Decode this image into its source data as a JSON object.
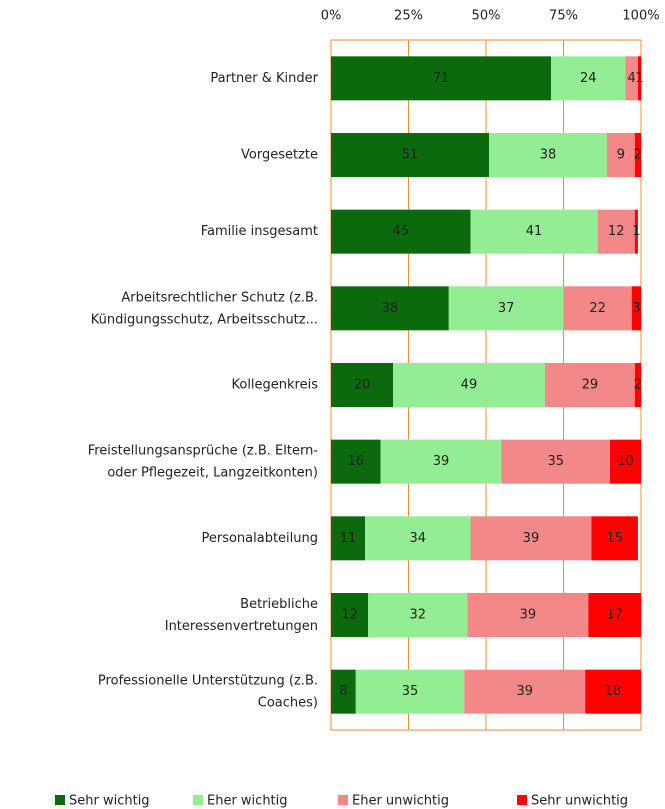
{
  "chart_data": {
    "type": "stacked-barh",
    "categories": [
      "Partner & Kinder",
      "Vorgesetzte",
      "Familie insgesamt",
      "Arbeitsrechtlicher Schutz (z.B.\nKündigungsschutz, Arbeitsschutz...",
      "Kollegenkreis",
      "Freistellungsansprüche (z.B. Eltern-\noder Pflegezeit, Langzeitkonten)",
      "Personalabteilung",
      "Betriebliche\nInteressenvertretungen",
      "Professionelle Unterstützung (z.B.\nCoaches)"
    ],
    "series": [
      {
        "name": "Sehr wichtig",
        "color": "#0b6a0b",
        "values": [
          71,
          51,
          45,
          38,
          20,
          16,
          11,
          12,
          8
        ]
      },
      {
        "name": "Eher wichtig",
        "color": "#93ee93",
        "values": [
          24,
          38,
          41,
          37,
          49,
          39,
          34,
          32,
          35
        ]
      },
      {
        "name": "Eher unwichtig",
        "color": "#f38888",
        "values": [
          4,
          9,
          12,
          22,
          29,
          35,
          39,
          39,
          39
        ]
      },
      {
        "name": "Sehr unwichtig",
        "color": "#ff0000",
        "values": [
          1,
          2,
          1,
          3,
          2,
          10,
          15,
          17,
          18
        ]
      }
    ],
    "xlim": [
      0,
      100
    ],
    "xticks": [
      {
        "value": 0,
        "label": "0%"
      },
      {
        "value": 25,
        "label": "25%"
      },
      {
        "value": 50,
        "label": "50%"
      },
      {
        "value": 75,
        "label": "75%"
      },
      {
        "value": 100,
        "label": "100%"
      }
    ],
    "grid": true
  }
}
